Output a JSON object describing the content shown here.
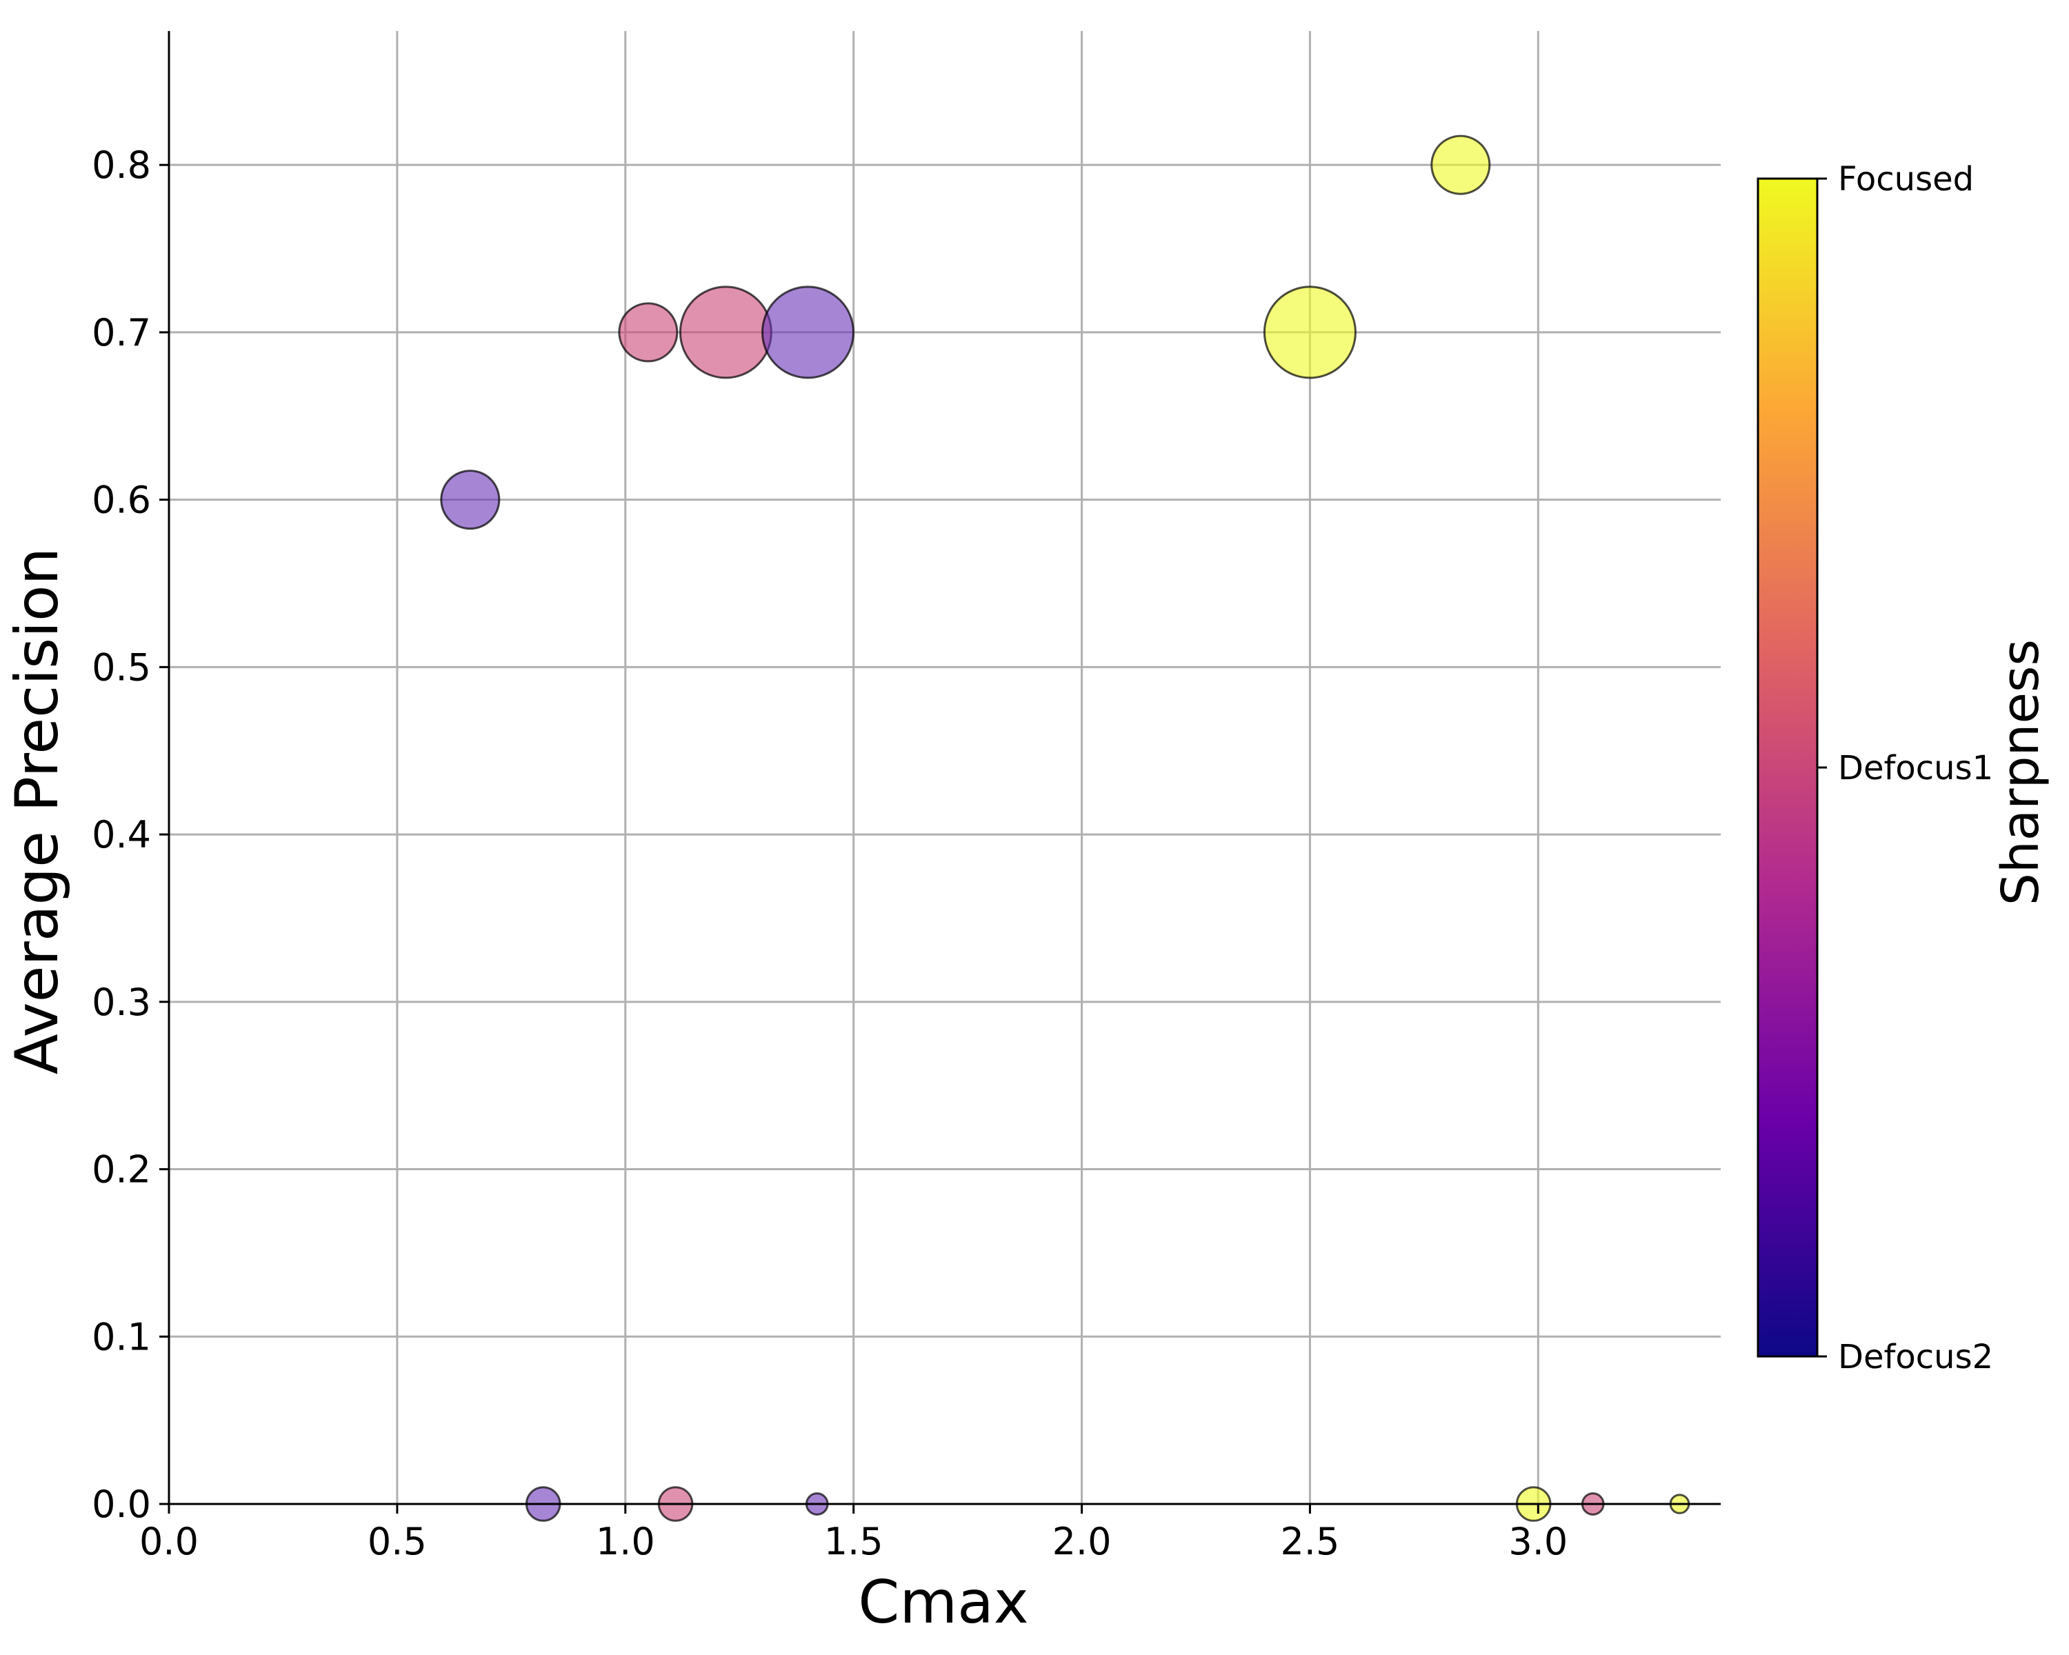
{
  "chart_data": {
    "type": "scatter",
    "xlabel": "Cmax",
    "ylabel": "Average Precision",
    "xlim": [
      0.0,
      3.4
    ],
    "ylim": [
      0.0,
      0.88
    ],
    "xticks": [
      "0.0",
      "0.5",
      "1.0",
      "1.5",
      "2.0",
      "2.5",
      "3.0"
    ],
    "yticks": [
      "0.0",
      "0.1",
      "0.2",
      "0.3",
      "0.4",
      "0.5",
      "0.6",
      "0.7",
      "0.8"
    ],
    "grid": true,
    "marker_alpha": 0.6,
    "marker_edge_color": "#000000",
    "colorbar": {
      "label": "Sharpness",
      "colormap": "plasma",
      "colormap_stops": [
        "#0d0887",
        "#6a00a8",
        "#b12a90",
        "#e16462",
        "#fca636",
        "#f0f921"
      ],
      "ticks": [
        "Focused",
        "Defocus1",
        "Defocus2"
      ],
      "tick_values": [
        1.0,
        0.5,
        0.0
      ]
    },
    "points": [
      {
        "x": 0.66,
        "y": 0.6,
        "size": 0.3,
        "category": "Defocus2",
        "color": "#6a33b8"
      },
      {
        "x": 1.05,
        "y": 0.7,
        "size": 0.3,
        "category": "Defocus1",
        "color": "#cc4778"
      },
      {
        "x": 1.22,
        "y": 0.7,
        "size": 0.74,
        "category": "Defocus1",
        "color": "#cc4778"
      },
      {
        "x": 1.4,
        "y": 0.7,
        "size": 0.74,
        "category": "Defocus2",
        "color": "#6a33b8"
      },
      {
        "x": 2.5,
        "y": 0.7,
        "size": 0.74,
        "category": "Focused",
        "color": "#eff821"
      },
      {
        "x": 2.83,
        "y": 0.8,
        "size": 0.3,
        "category": "Focused",
        "color": "#eff821"
      },
      {
        "x": 0.82,
        "y": 0.0,
        "size": 0.1,
        "category": "Defocus2",
        "color": "#6a33b8"
      },
      {
        "x": 1.11,
        "y": 0.0,
        "size": 0.1,
        "category": "Defocus1",
        "color": "#cc4778"
      },
      {
        "x": 1.42,
        "y": 0.0,
        "size": 0.04,
        "category": "Defocus2",
        "color": "#6a33b8"
      },
      {
        "x": 2.99,
        "y": 0.0,
        "size": 0.1,
        "category": "Focused",
        "color": "#eff821"
      },
      {
        "x": 3.12,
        "y": 0.0,
        "size": 0.04,
        "category": "Defocus1",
        "color": "#cc4778"
      },
      {
        "x": 3.31,
        "y": 0.0,
        "size": 0.03,
        "category": "Focused",
        "color": "#eff821"
      }
    ]
  }
}
